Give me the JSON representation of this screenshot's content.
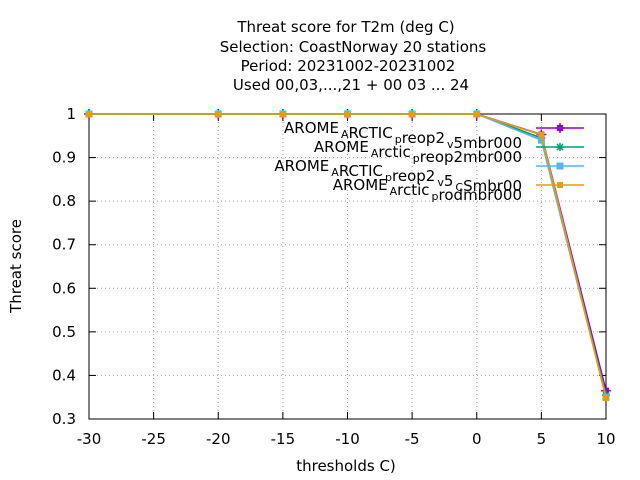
{
  "chart_data": {
    "type": "line",
    "title_lines": [
      "Threat score  for T2m (deg C)",
      "Selection: CoastNorway      20 stations",
      "Period: 20231002-20231002",
      "Used  00,03,...,21  + 00 03 ... 24"
    ],
    "xlabel": "thresholds C)",
    "ylabel": "Threat score",
    "xlim": [
      -30,
      10
    ],
    "ylim": [
      0.3,
      1.0
    ],
    "x_ticks": [
      -30,
      -25,
      -20,
      -15,
      -10,
      -5,
      0,
      5,
      10
    ],
    "y_ticks": [
      0.3,
      0.4,
      0.5,
      0.6,
      0.7,
      0.8,
      0.9,
      1.0
    ],
    "x_tick_labels": [
      "-30",
      "-25",
      "-20",
      "-15",
      "-10",
      "-5",
      "0",
      "5",
      "10"
    ],
    "y_tick_labels": [
      "0.3",
      "0.4",
      "0.5",
      "0.6",
      "0.7",
      "0.8",
      "0.9",
      "1"
    ],
    "grid": true,
    "legend_position": "top-right",
    "x": [
      -30,
      -20,
      -15,
      -10,
      -5,
      0,
      5,
      10
    ],
    "series": [
      {
        "name": "AROME_ARCTIC_preop2_v5mbr000",
        "legend_parts": [
          [
            "AROME",
            ""
          ],
          [
            "A",
            "sub"
          ],
          [
            "RCTIC",
            ""
          ],
          [
            "p",
            "sub"
          ],
          [
            "reop2",
            ""
          ],
          [
            "v",
            "sub"
          ],
          [
            "5mbr000",
            ""
          ]
        ],
        "color": "#9400d3",
        "marker": "plus-filled",
        "values": [
          1.0,
          1.0,
          1.0,
          1.0,
          1.0,
          1.0,
          0.953,
          0.365
        ]
      },
      {
        "name": "AROME_Arctic_preop2mbr000",
        "legend_parts": [
          [
            "AROME",
            ""
          ],
          [
            "A",
            "sub"
          ],
          [
            "rctic",
            ""
          ],
          [
            "p",
            "sub"
          ],
          [
            "reop2mbr000",
            ""
          ]
        ],
        "color": "#009e73",
        "marker": "star",
        "values": [
          1.0,
          1.0,
          1.0,
          1.0,
          1.0,
          1.0,
          0.945,
          0.355
        ]
      },
      {
        "name": "AROME_ARCTIC_preop2_v5_CSmbr00",
        "legend_parts": [
          [
            "AROME",
            ""
          ],
          [
            "A",
            "sub"
          ],
          [
            "RCTIC",
            ""
          ],
          [
            "p",
            "sub"
          ],
          [
            "reop2",
            ""
          ],
          [
            "v",
            "sub"
          ],
          [
            "5",
            ""
          ],
          [
            "C",
            "sub"
          ],
          [
            "Smbr00",
            ""
          ]
        ],
        "color": "#56b4e9",
        "marker": "square",
        "values": [
          1.0,
          1.0,
          1.0,
          1.0,
          1.0,
          1.0,
          0.94,
          0.35
        ]
      },
      {
        "name": "AROME_Arctic_prodmbr000",
        "legend_parts": [
          [
            "AROME",
            ""
          ],
          [
            "A",
            "sub"
          ],
          [
            "rctic",
            ""
          ],
          [
            "p",
            "sub"
          ],
          [
            "rodmbr000",
            ""
          ]
        ],
        "color": "#e69f00",
        "marker": "square-filled",
        "values": [
          1.0,
          1.0,
          1.0,
          1.0,
          1.0,
          1.0,
          0.952,
          0.348
        ]
      }
    ]
  }
}
